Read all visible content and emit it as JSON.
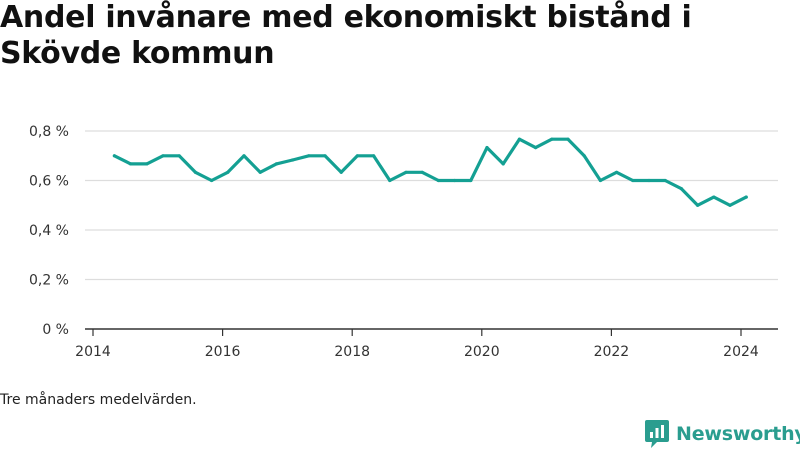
{
  "title": "Andel invånare med ekonomiskt bistånd i Skövde kommun",
  "caption": "Tre månaders medelvärden.",
  "brand": {
    "name": "Newsworthy",
    "color": "#2a9d8f"
  },
  "colors": {
    "line": "#14a093",
    "grid": "#dddddd",
    "axis": "#333333"
  },
  "chart_data": {
    "type": "line",
    "title": "Andel invånare med ekonomiskt bistånd i Skövde kommun",
    "xlabel": "",
    "ylabel": "",
    "xlim": [
      2014,
      2024.6
    ],
    "ylim": [
      0,
      0.8
    ],
    "grid": true,
    "y_ticks": [
      {
        "value": 0,
        "label": "0 %"
      },
      {
        "value": 0.2,
        "label": "0,2 %"
      },
      {
        "value": 0.4,
        "label": "0,4 %"
      },
      {
        "value": 0.6,
        "label": "0,6 %"
      },
      {
        "value": 0.8,
        "label": "0,8 %"
      }
    ],
    "x_ticks": [
      {
        "value": 2014,
        "label": "2014"
      },
      {
        "value": 2016,
        "label": "2016"
      },
      {
        "value": 2018,
        "label": "2018"
      },
      {
        "value": 2020,
        "label": "2020"
      },
      {
        "value": 2022,
        "label": "2022"
      },
      {
        "value": 2024,
        "label": "2024"
      }
    ],
    "series": [
      {
        "x": [
          2014.33,
          2014.58,
          2014.83,
          2015.08,
          2015.33,
          2015.58,
          2015.83,
          2016.08,
          2016.33,
          2016.58,
          2016.83,
          2017.08,
          2017.33,
          2017.58,
          2017.83,
          2018.08,
          2018.33,
          2018.58,
          2018.83,
          2019.08,
          2019.33,
          2019.58,
          2019.83,
          2020.08,
          2020.33,
          2020.58,
          2020.83,
          2021.08,
          2021.33,
          2021.58,
          2021.83,
          2022.08,
          2022.33,
          2022.58,
          2022.83,
          2023.08,
          2023.33,
          2023.58,
          2023.83,
          2024.08
        ],
        "y": [
          0.7,
          0.667,
          0.667,
          0.7,
          0.7,
          0.633,
          0.6,
          0.633,
          0.7,
          0.633,
          0.667,
          0.683,
          0.7,
          0.7,
          0.633,
          0.7,
          0.7,
          0.6,
          0.633,
          0.633,
          0.6,
          0.6,
          0.6,
          0.733,
          0.667,
          0.767,
          0.733,
          0.767,
          0.767,
          0.7,
          0.6,
          0.633,
          0.6,
          0.6,
          0.6,
          0.567,
          0.5,
          0.533,
          0.5,
          0.533
        ]
      }
    ]
  }
}
